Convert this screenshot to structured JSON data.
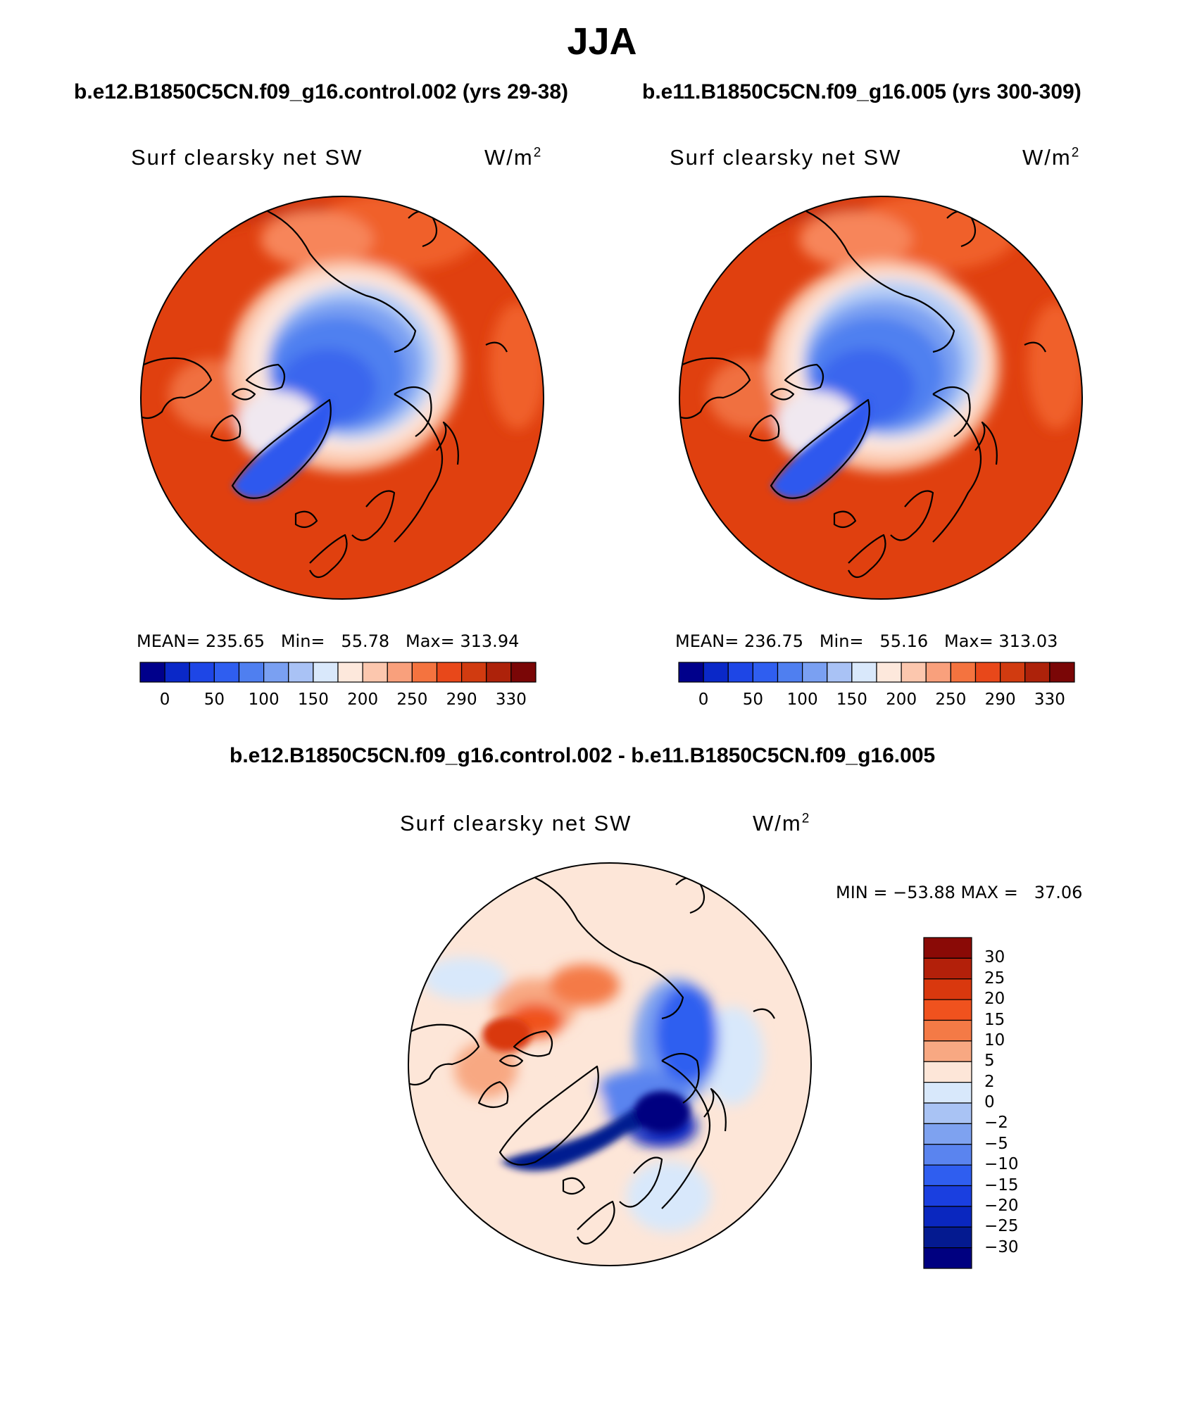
{
  "season": "JJA",
  "panels": [
    {
      "case": "b.e12.B1850C5CN.f09_g16.control.002 (yrs 29-38)",
      "variable": "Surf clearsky net SW",
      "units": "W/m",
      "units_exp": "2",
      "stats": "MEAN= 235.65   Min=   55.78   Max= 313.94",
      "colorbar_labels": [
        "0",
        "50",
        "100",
        "150",
        "200",
        "250",
        "290",
        "330"
      ]
    },
    {
      "case": "b.e11.B1850C5CN.f09_g16.005 (yrs 300-309)",
      "variable": "Surf clearsky net SW",
      "units": "W/m",
      "units_exp": "2",
      "stats": "MEAN= 236.75   Min=   55.16   Max= 313.03",
      "colorbar_labels": [
        "0",
        "50",
        "100",
        "150",
        "200",
        "250",
        "290",
        "330"
      ]
    }
  ],
  "diff": {
    "title": "b.e12.B1850C5CN.f09_g16.control.002 - b.e11.B1850C5CN.f09_g16.005",
    "variable": "Surf clearsky net SW",
    "units": "W/m",
    "units_exp": "2",
    "stats": "MIN = −53.88 MAX =   37.06",
    "colorbar_labels": [
      "30",
      "25",
      "20",
      "15",
      "10",
      "5",
      "2",
      "0",
      "−2",
      "−5",
      "−10",
      "−15",
      "−20",
      "−25",
      "−30"
    ]
  },
  "colors": {
    "abs_scale": [
      "#00008b",
      "#0a28c8",
      "#1e46e6",
      "#2f5ef0",
      "#4f7ff0",
      "#7aa0f2",
      "#a9c2f5",
      "#d9e8fb",
      "#fde8dc",
      "#fcc7ae",
      "#f9a07c",
      "#f4733f",
      "#e8481a",
      "#d13b10",
      "#ad220a",
      "#7a0606"
    ],
    "diff_scale": [
      "#8a0a06",
      "#b3200a",
      "#d9380e",
      "#f0521e",
      "#f47a46",
      "#f8a882",
      "#fde6d8",
      "#d8e8fb",
      "#a9c3f4",
      "#7ea2f0",
      "#5a84ef",
      "#2f5ef0",
      "#1a3fe0",
      "#0a27bf",
      "#041a90",
      "#000080"
    ]
  }
}
